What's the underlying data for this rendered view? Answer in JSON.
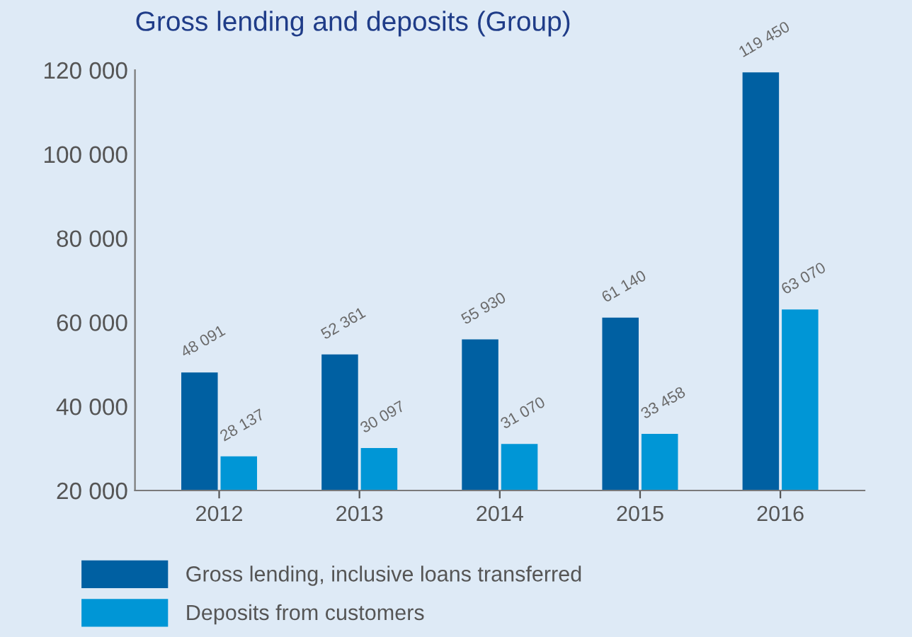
{
  "chart_data": {
    "type": "bar",
    "title": "Gross lending and deposits (Group)",
    "categories": [
      "2012",
      "2013",
      "2014",
      "2015",
      "2016"
    ],
    "series": [
      {
        "name": "Gross lending, inclusive loans transferred",
        "color": "#0060a2",
        "values": [
          48091,
          52361,
          55930,
          61140,
          119450
        ],
        "value_labels": [
          "48 091",
          "52 361",
          "55 930",
          "61 140",
          "119 450"
        ]
      },
      {
        "name": "Deposits from customers",
        "color": "#0096d6",
        "values": [
          28137,
          30097,
          31070,
          33458,
          63070
        ],
        "value_labels": [
          "28 137",
          "30 097",
          "31 070",
          "33 458",
          "63 070"
        ]
      }
    ],
    "ylim": [
      20000,
      120000
    ],
    "yticks": [
      {
        "value": 20000,
        "label": "20 000"
      },
      {
        "value": 40000,
        "label": "40 000"
      },
      {
        "value": 60000,
        "label": "60 000"
      },
      {
        "value": 80000,
        "label": "80 000"
      },
      {
        "value": 100000,
        "label": "100 000"
      },
      {
        "value": 120000,
        "label": "120 000"
      }
    ],
    "grid": false,
    "legend": "bottom"
  }
}
